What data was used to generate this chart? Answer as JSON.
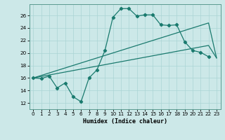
{
  "xlabel": "Humidex (Indice chaleur)",
  "bg_color": "#cce8e8",
  "grid_color": "#aad4d4",
  "line_color": "#1a7a6e",
  "xlim": [
    -0.5,
    23.5
  ],
  "ylim": [
    11.0,
    27.8
  ],
  "yticks": [
    12,
    14,
    16,
    18,
    20,
    22,
    24,
    26
  ],
  "xticks": [
    0,
    1,
    2,
    3,
    4,
    5,
    6,
    7,
    8,
    9,
    10,
    11,
    12,
    13,
    14,
    15,
    16,
    17,
    18,
    19,
    20,
    21,
    22,
    23
  ],
  "series1_x": [
    0,
    1,
    2,
    3,
    4,
    5,
    6,
    7,
    8,
    9,
    10,
    11,
    12,
    13,
    14,
    15,
    16,
    17,
    18,
    19,
    20,
    21,
    22
  ],
  "series1_y": [
    16.0,
    15.9,
    16.3,
    14.4,
    15.2,
    13.0,
    12.2,
    16.0,
    17.3,
    20.4,
    25.7,
    27.1,
    27.1,
    25.9,
    26.1,
    26.1,
    24.5,
    24.4,
    24.5,
    21.8,
    20.4,
    20.1,
    19.4
  ],
  "series2_x": [
    0,
    22,
    23
  ],
  "series2_y": [
    16.0,
    24.8,
    19.2
  ],
  "series3_x": [
    0,
    22,
    23
  ],
  "series3_y": [
    16.0,
    21.2,
    19.2
  ],
  "xlabel_fontsize": 6.0,
  "tick_fontsize": 5.2
}
